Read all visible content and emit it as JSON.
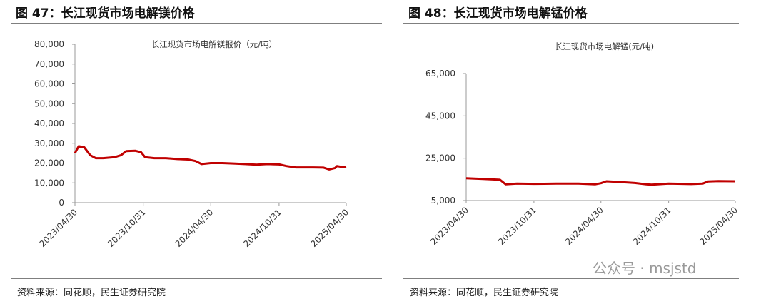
{
  "chart_data": [
    {
      "type": "line",
      "title": "图 47：长江现货市场电解镁价格",
      "subtitle": "长江现货市场电解镁报价（元/吨）",
      "source": "资料来源：同花顺，民生证券研究院",
      "ylim": [
        0,
        80000
      ],
      "yticks": [
        0,
        {
          "value": 10000,
          "label": "10,000"
        },
        {
          "value": 20000,
          "label": "20,000"
        },
        {
          "value": 30000,
          "label": "30,000"
        },
        {
          "value": 40000,
          "label": "40,000"
        },
        {
          "value": 50000,
          "label": "50,000"
        },
        {
          "value": 60000,
          "label": "60,000"
        },
        {
          "value": 70000,
          "label": "70,000"
        },
        {
          "value": 80000,
          "label": "80,000"
        }
      ],
      "xlim": [
        "2023/04/30",
        "2025/04/30"
      ],
      "xticks": [
        "2023/04/30",
        "2023/10/31",
        "2024/04/30",
        "2024/10/31",
        "2025/04/30"
      ],
      "x": [
        "2023/04/30",
        "2023/05/10",
        "2023/05/25",
        "2023/06/10",
        "2023/06/25",
        "2023/07/15",
        "2023/08/15",
        "2023/09/01",
        "2023/09/15",
        "2023/10/10",
        "2023/10/25",
        "2023/11/05",
        "2023/11/30",
        "2023/12/31",
        "2024/01/31",
        "2024/02/29",
        "2024/03/20",
        "2024/04/05",
        "2024/04/30",
        "2024/05/31",
        "2024/06/30",
        "2024/07/31",
        "2024/08/31",
        "2024/09/30",
        "2024/10/31",
        "2024/11/20",
        "2024/12/15",
        "2025/01/31",
        "2025/02/28",
        "2025/03/15",
        "2025/03/31",
        "2025/04/05",
        "2025/04/20",
        "2025/04/30"
      ],
      "series": [
        {
          "color": "#c00000",
          "values": [
            25000,
            28500,
            28000,
            24000,
            22500,
            22500,
            23000,
            24000,
            26000,
            26200,
            25500,
            23000,
            22500,
            22500,
            22000,
            21800,
            21000,
            19500,
            20000,
            20000,
            19800,
            19500,
            19200,
            19500,
            19300,
            18500,
            17800,
            17800,
            17700,
            16800,
            17500,
            18500,
            18000,
            18200
          ]
        }
      ]
    },
    {
      "type": "line",
      "title": "图 48：长江现货市场电解锰价格",
      "subtitle": "长江现货市场电解锰(元/吨)",
      "source": "资料来源：同花顺，民生证券研究院",
      "ylim": [
        5000,
        65000
      ],
      "yticks": [
        {
          "value": 5000,
          "label": "5,000"
        },
        {
          "value": 25000,
          "label": "25,000"
        },
        {
          "value": 45000,
          "label": "45,000"
        },
        {
          "value": 65000,
          "label": "65,000"
        }
      ],
      "xlim": [
        "2023/04/30",
        "2025/04/30"
      ],
      "xticks": [
        "2023/04/30",
        "2023/10/31",
        "2024/04/30",
        "2024/10/31",
        "2025/04/30"
      ],
      "x": [
        "2023/04/30",
        "2023/06/15",
        "2023/07/31",
        "2023/08/15",
        "2023/09/15",
        "2023/10/31",
        "2023/12/31",
        "2024/02/29",
        "2024/04/15",
        "2024/04/30",
        "2024/05/15",
        "2024/06/15",
        "2024/07/31",
        "2024/08/31",
        "2024/09/15",
        "2024/10/31",
        "2024/12/31",
        "2025/01/31",
        "2025/02/15",
        "2025/03/15",
        "2025/04/30"
      ],
      "series": [
        {
          "color": "#c00000",
          "values": [
            15500,
            15200,
            14800,
            12700,
            13000,
            12900,
            13000,
            13000,
            12700,
            13200,
            14100,
            13800,
            13300,
            12700,
            12500,
            13000,
            12800,
            13000,
            14000,
            14200,
            14100
          ]
        }
      ]
    }
  ],
  "watermark": "公众号 · msjstd"
}
